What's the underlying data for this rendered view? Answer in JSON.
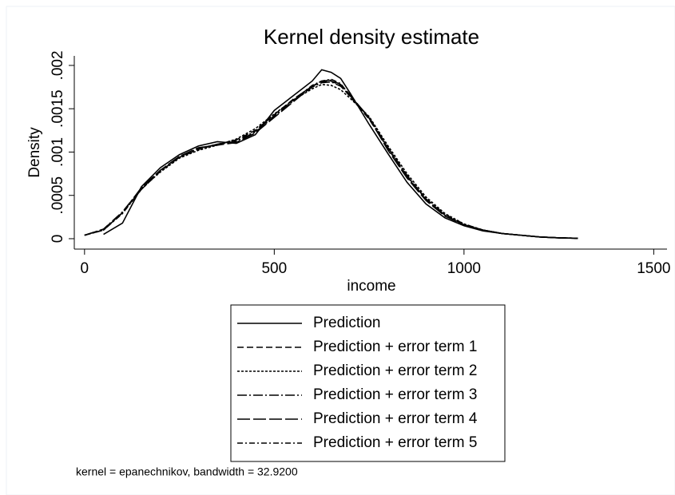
{
  "chart_data": {
    "type": "line",
    "title": "Kernel density estimate",
    "x_label": "income",
    "y_label": "Density",
    "note": "kernel = epanechnikov, bandwidth = 32.9200",
    "x": [
      0,
      50,
      100,
      150,
      200,
      250,
      300,
      350,
      400,
      450,
      500,
      550,
      600,
      625,
      650,
      675,
      700,
      750,
      800,
      850,
      900,
      950,
      1000,
      1050,
      1100,
      1150,
      1200,
      1250,
      1300
    ],
    "series": [
      {
        "name": "Prediction",
        "color": "#000000",
        "dash": "none",
        "values": [
          null,
          5e-05,
          0.00018,
          0.0006,
          0.00082,
          0.00097,
          0.00107,
          0.00112,
          0.0011,
          0.0012,
          0.00148,
          0.00165,
          0.00182,
          0.00195,
          0.00192,
          0.00185,
          0.00168,
          0.00132,
          0.00098,
          0.00065,
          0.0004,
          0.00024,
          0.00015,
          9e-05,
          6e-05,
          4e-05,
          2e-05,
          1e-05,
          5e-06
        ]
      },
      {
        "name": "Prediction + error term 1",
        "color": "#000000",
        "dash": "8,4",
        "values": [
          4e-05,
          0.0001,
          0.0003,
          0.00057,
          0.00078,
          0.00094,
          0.00103,
          0.00109,
          0.00114,
          0.00125,
          0.00143,
          0.00161,
          0.00176,
          0.00181,
          0.00182,
          0.00177,
          0.00164,
          0.00138,
          0.00104,
          0.00072,
          0.00046,
          0.00027,
          0.00016,
          0.0001,
          6e-05,
          4e-05,
          2e-05,
          1e-05,
          5e-06
        ]
      },
      {
        "name": "Prediction + error term 2",
        "color": "#000000",
        "dash": "3,2",
        "values": [
          4e-05,
          0.0001,
          0.0003,
          0.00058,
          0.00077,
          0.00093,
          0.00102,
          0.00108,
          0.00115,
          0.00127,
          0.00144,
          0.0016,
          0.00173,
          0.00178,
          0.00177,
          0.00172,
          0.00162,
          0.00141,
          0.00107,
          0.00075,
          0.00048,
          0.00029,
          0.00017,
          0.0001,
          6e-05,
          4e-05,
          2e-05,
          1e-05,
          5e-06
        ]
      },
      {
        "name": "Prediction + error term 3",
        "color": "#000000",
        "dash": "12,3,2,3",
        "values": [
          4e-05,
          0.00011,
          0.00031,
          0.00058,
          0.00079,
          0.00095,
          0.00104,
          0.00109,
          0.00112,
          0.00123,
          0.00141,
          0.00159,
          0.00175,
          0.0018,
          0.00181,
          0.00176,
          0.00165,
          0.0014,
          0.00105,
          0.00073,
          0.00045,
          0.00027,
          0.00016,
          0.0001,
          6e-05,
          4e-05,
          2e-05,
          1e-05,
          5e-06
        ]
      },
      {
        "name": "Prediction + error term 4",
        "color": "#000000",
        "dash": "16,4",
        "values": [
          4e-05,
          0.00011,
          0.0003,
          0.00059,
          0.00079,
          0.00095,
          0.00105,
          0.00108,
          0.00111,
          0.00122,
          0.0014,
          0.00158,
          0.00176,
          0.00182,
          0.00183,
          0.00178,
          0.00166,
          0.00139,
          0.00102,
          0.0007,
          0.00044,
          0.00026,
          0.00016,
          0.0001,
          6e-05,
          4e-05,
          2e-05,
          1e-05,
          5e-06
        ]
      },
      {
        "name": "Prediction + error term 5",
        "color": "#000000",
        "dash": "7,3,2,3",
        "values": [
          4e-05,
          0.0001,
          0.00029,
          0.00057,
          0.00078,
          0.00094,
          0.00104,
          0.00109,
          0.00113,
          0.00124,
          0.00142,
          0.0016,
          0.00177,
          0.00182,
          0.00184,
          0.00179,
          0.00165,
          0.00139,
          0.00104,
          0.00071,
          0.00046,
          0.00028,
          0.00017,
          0.0001,
          6e-05,
          4e-05,
          2e-05,
          1e-05,
          5e-06
        ]
      }
    ],
    "xlim": [
      -27,
      1535
    ],
    "xticks": [
      0,
      500,
      1000,
      1500
    ],
    "ylim": [
      -0.00012,
      0.00211
    ],
    "yticks": [
      0,
      {
        "value": 0.0005,
        "label": ".0005"
      },
      {
        "value": 0.001,
        "label": ".001"
      },
      {
        "value": 0.0015,
        "label": ".0015"
      },
      {
        "value": 0.002,
        "label": ".002"
      }
    ],
    "grid": false
  }
}
